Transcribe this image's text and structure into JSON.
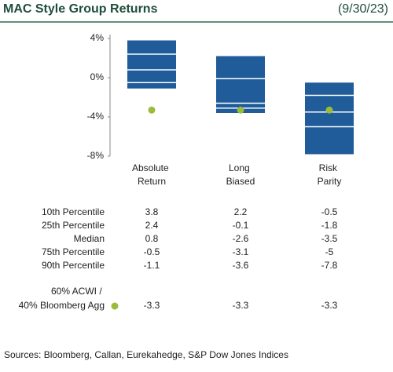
{
  "chart_data": {
    "type": "box",
    "title": "MAC Style Group Returns",
    "subtitle": "(9/30/23)",
    "categories": [
      "Absolute Return",
      "Long Biased",
      "Risk Parity"
    ],
    "color": "#1f5c99",
    "ylim": [
      -8,
      4.4
    ],
    "yticks": [
      {
        "value": 4,
        "label": "4%"
      },
      {
        "value": 0,
        "label": "0%"
      },
      {
        "value": -4,
        "label": "-4%"
      },
      {
        "value": -8,
        "label": "-8%"
      }
    ],
    "series": [
      {
        "name": "10th Percentile",
        "values": [
          3.8,
          2.2,
          -0.5
        ]
      },
      {
        "name": "25th Percentile",
        "values": [
          2.4,
          -0.1,
          -1.8
        ]
      },
      {
        "name": "Median",
        "values": [
          0.8,
          -2.6,
          -3.5
        ]
      },
      {
        "name": "75th Percentile",
        "values": [
          -0.5,
          -3.1,
          -5.0
        ]
      },
      {
        "name": "90th Percentile",
        "values": [
          -1.1,
          -3.6,
          -7.8
        ]
      }
    ],
    "benchmark": {
      "name": "60% ACWI / 40% Bloomberg Agg",
      "color": "#9bbb3b",
      "values": [
        -3.3,
        -3.3,
        -3.3
      ]
    },
    "source": "Sources: Bloomberg, Callan, Eurekahedge, S&P Dow Jones Indices"
  }
}
